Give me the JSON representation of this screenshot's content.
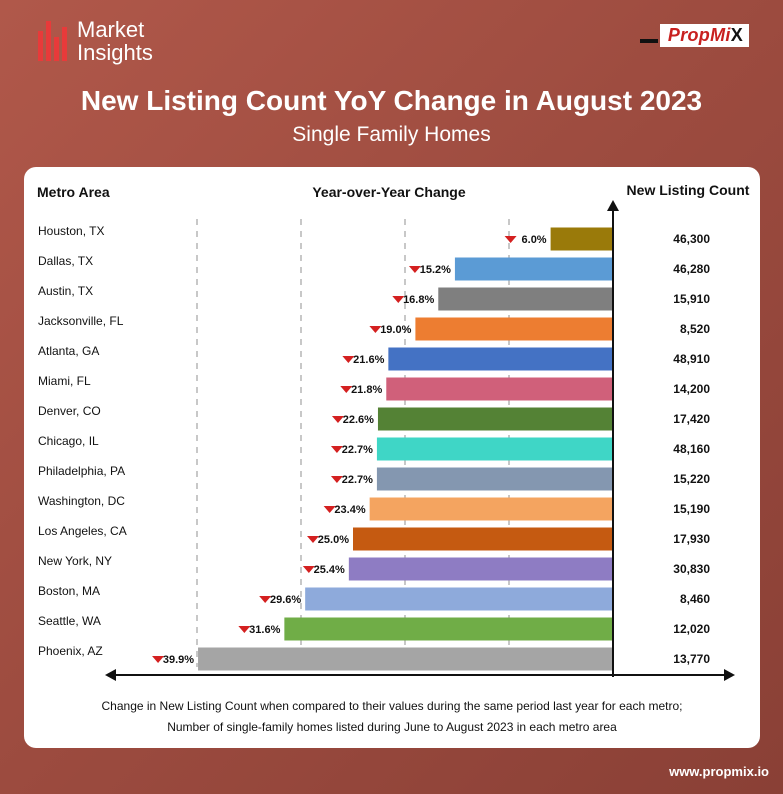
{
  "header": {
    "logo_line1": "Market",
    "logo_line2": "Insights",
    "brand_main": "PropMi",
    "brand_x": "X",
    "title": "New Listing Count YoY Change in August 2023",
    "subtitle": "Single Family Homes"
  },
  "colors": {
    "background": "#a4503f",
    "accent_red": "#e83a3a",
    "down_arrow": "#d42020"
  },
  "chart_data": {
    "type": "bar",
    "orientation": "horizontal",
    "column_headers": {
      "metro": "Metro Area",
      "change": "Year-over-Year Change",
      "count": "New Listing Count"
    },
    "xlim": [
      -40,
      0
    ],
    "grid": "dashed vertical lines",
    "rows": [
      {
        "metro": "Houston, TX",
        "change": -6.0,
        "label": "6.0%",
        "count": "46,300",
        "color": "#9a7a0a"
      },
      {
        "metro": "Dallas, TX",
        "change": -15.2,
        "label": "15.2%",
        "count": "46,280",
        "color": "#5b9bd5"
      },
      {
        "metro": "Austin, TX",
        "change": -16.8,
        "label": "16.8%",
        "count": "15,910",
        "color": "#7f7f7f"
      },
      {
        "metro": "Jacksonville, FL",
        "change": -19.0,
        "label": "19.0%",
        "count": "8,520",
        "color": "#ed7d31"
      },
      {
        "metro": "Atlanta, GA",
        "change": -21.6,
        "label": "21.6%",
        "count": "48,910",
        "color": "#4472c4"
      },
      {
        "metro": "Miami, FL",
        "change": -21.8,
        "label": "21.8%",
        "count": "14,200",
        "color": "#d0607a"
      },
      {
        "metro": "Denver, CO",
        "change": -22.6,
        "label": "22.6%",
        "count": "17,420",
        "color": "#548235"
      },
      {
        "metro": "Chicago, IL",
        "change": -22.7,
        "label": "22.7%",
        "count": "48,160",
        "color": "#3fd6c6"
      },
      {
        "metro": "Philadelphia, PA",
        "change": -22.7,
        "label": "22.7%",
        "count": "15,220",
        "color": "#8497b0"
      },
      {
        "metro": "Washington, DC",
        "change": -23.4,
        "label": "23.4%",
        "count": "15,190",
        "color": "#f4a460"
      },
      {
        "metro": "Los Angeles, CA",
        "change": -25.0,
        "label": "25.0%",
        "count": "17,930",
        "color": "#c55a11"
      },
      {
        "metro": "New York, NY",
        "change": -25.4,
        "label": "25.4%",
        "count": "30,830",
        "color": "#8e7cc3"
      },
      {
        "metro": "Boston, MA",
        "change": -29.6,
        "label": "29.6%",
        "count": "8,460",
        "color": "#8eaadb"
      },
      {
        "metro": "Seattle, WA",
        "change": -31.6,
        "label": "31.6%",
        "count": "12,020",
        "color": "#70ad47"
      },
      {
        "metro": "Phoenix, AZ",
        "change": -39.9,
        "label": "39.9%",
        "count": "13,770",
        "color": "#a5a5a5"
      }
    ],
    "note_line1": "Change in New Listing Count when compared to their values during the same period last year for each metro;",
    "note_line2": "Number of single-family homes listed during June to August 2023 in each metro area"
  },
  "footer": {
    "url": "www.propmix.io"
  }
}
